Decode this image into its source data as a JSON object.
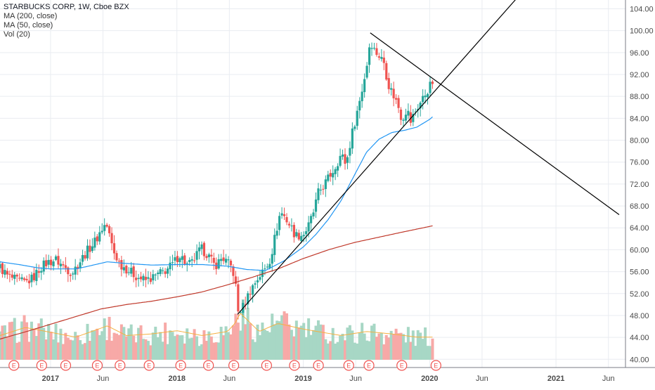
{
  "legend": {
    "title": "STARBUCKS CORP, 1W, Cboe BZX",
    "ma200": "MA (200, close)",
    "ma50": "MA (50, close)",
    "vol": "Vol (20)"
  },
  "colors": {
    "up": "#26a69a",
    "down": "#ef5350",
    "vol_up": "#a7d7c5",
    "vol_down": "#f7a9a7",
    "ma200": "#c0392b",
    "ma50": "#2196f3",
    "vol_ma": "#f5b041",
    "trendline": "#000000",
    "grid": "#e9ecf1",
    "axis_text": "#4a4a4a"
  },
  "chart_data": {
    "type": "candlestick",
    "y_ticks": [
      "40.00",
      "44.00",
      "48.00",
      "52.00",
      "56.00",
      "60.00",
      "64.00",
      "68.00",
      "72.00",
      "76.00",
      "80.00",
      "84.00",
      "88.00",
      "92.00",
      "96.00",
      "100.00",
      "104.00"
    ],
    "y_tick_values": [
      40,
      44,
      48,
      52,
      56,
      60,
      64,
      68,
      72,
      76,
      80,
      84,
      88,
      92,
      96,
      100,
      104
    ],
    "ylim": [
      38.5,
      105.6
    ],
    "x_ticks": [
      {
        "label": "2017",
        "t": 2017.0
      },
      {
        "label": "Jun",
        "t": 2017.415
      },
      {
        "label": "2018",
        "t": 2018.0
      },
      {
        "label": "Jun",
        "t": 2018.415
      },
      {
        "label": "2019",
        "t": 2019.0
      },
      {
        "label": "Jun",
        "t": 2019.415
      },
      {
        "label": "2020",
        "t": 2020.0
      },
      {
        "label": "Jun",
        "t": 2020.415
      },
      {
        "label": "2021",
        "t": 2021.0
      },
      {
        "label": "Jun",
        "t": 2021.415
      }
    ],
    "price_anchors": [
      [
        2016.6,
        56.8
      ],
      [
        2016.66,
        55.2
      ],
      [
        2016.73,
        54.4
      ],
      [
        2016.8,
        54.0
      ],
      [
        2016.86,
        54.8
      ],
      [
        2016.92,
        56.8
      ],
      [
        2016.97,
        57.6
      ],
      [
        2017.04,
        58.2
      ],
      [
        2017.1,
        57.0
      ],
      [
        2017.17,
        55.8
      ],
      [
        2017.23,
        57.8
      ],
      [
        2017.29,
        59.8
      ],
      [
        2017.36,
        61.8
      ],
      [
        2017.4,
        63.6
      ],
      [
        2017.44,
        64.8
      ],
      [
        2017.5,
        59.6
      ],
      [
        2017.55,
        57.4
      ],
      [
        2017.62,
        56.2
      ],
      [
        2017.69,
        55.0
      ],
      [
        2017.75,
        54.4
      ],
      [
        2017.8,
        54.8
      ],
      [
        2017.86,
        55.6
      ],
      [
        2017.92,
        56.4
      ],
      [
        2017.97,
        57.4
      ],
      [
        2018.02,
        59.2
      ],
      [
        2018.08,
        57.2
      ],
      [
        2018.12,
        57.6
      ],
      [
        2018.19,
        60.2
      ],
      [
        2018.24,
        59.2
      ],
      [
        2018.3,
        57.0
      ],
      [
        2018.36,
        58.6
      ],
      [
        2018.4,
        57.6
      ],
      [
        2018.44,
        56.6
      ],
      [
        2018.47,
        52.6
      ],
      [
        2018.48,
        48.6
      ],
      [
        2018.52,
        49.4
      ],
      [
        2018.58,
        52.6
      ],
      [
        2018.64,
        54.8
      ],
      [
        2018.7,
        56.6
      ],
      [
        2018.74,
        58.4
      ],
      [
        2018.78,
        62.8
      ],
      [
        2018.82,
        67.0
      ],
      [
        2018.86,
        65.8
      ],
      [
        2018.9,
        64.2
      ],
      [
        2018.94,
        62.6
      ],
      [
        2019.0,
        62.8
      ],
      [
        2019.04,
        64.2
      ],
      [
        2019.08,
        66.8
      ],
      [
        2019.12,
        70.4
      ],
      [
        2019.18,
        72.4
      ],
      [
        2019.24,
        74.6
      ],
      [
        2019.3,
        77.4
      ],
      [
        2019.34,
        75.6
      ],
      [
        2019.38,
        80.6
      ],
      [
        2019.42,
        84.6
      ],
      [
        2019.46,
        88.6
      ],
      [
        2019.5,
        93.2
      ],
      [
        2019.53,
        98.4
      ],
      [
        2019.56,
        96.6
      ],
      [
        2019.6,
        95.4
      ],
      [
        2019.64,
        94.2
      ],
      [
        2019.67,
        90.4
      ],
      [
        2019.71,
        88.4
      ],
      [
        2019.75,
        86.4
      ],
      [
        2019.78,
        83.8
      ],
      [
        2019.82,
        85.8
      ],
      [
        2019.85,
        83.4
      ],
      [
        2019.88,
        85.0
      ],
      [
        2019.92,
        86.6
      ],
      [
        2019.96,
        88.2
      ],
      [
        2020.0,
        89.8
      ],
      [
        2020.03,
        90.8
      ]
    ],
    "ma50_anchors": [
      [
        2016.6,
        57.8
      ],
      [
        2016.75,
        57.3
      ],
      [
        2016.9,
        56.7
      ],
      [
        2017.0,
        56.5
      ],
      [
        2017.2,
        56.5
      ],
      [
        2017.3,
        57.0
      ],
      [
        2017.45,
        57.8
      ],
      [
        2017.6,
        57.5
      ],
      [
        2017.8,
        57.2
      ],
      [
        2018.0,
        57.3
      ],
      [
        2018.2,
        57.3
      ],
      [
        2018.4,
        57.0
      ],
      [
        2018.55,
        56.4
      ],
      [
        2018.7,
        56.2
      ],
      [
        2018.85,
        58.0
      ],
      [
        2019.0,
        60.5
      ],
      [
        2019.1,
        62.8
      ],
      [
        2019.2,
        65.6
      ],
      [
        2019.3,
        69.0
      ],
      [
        2019.4,
        73.4
      ],
      [
        2019.5,
        77.8
      ],
      [
        2019.6,
        80.2
      ],
      [
        2019.7,
        81.4
      ],
      [
        2019.8,
        81.8
      ],
      [
        2019.9,
        82.4
      ],
      [
        2020.0,
        83.8
      ],
      [
        2020.03,
        84.4
      ]
    ],
    "ma200_anchors": [
      [
        2016.6,
        43.7
      ],
      [
        2016.8,
        45.0
      ],
      [
        2017.0,
        46.4
      ],
      [
        2017.2,
        47.8
      ],
      [
        2017.4,
        49.2
      ],
      [
        2017.6,
        50.0
      ],
      [
        2017.8,
        50.6
      ],
      [
        2018.0,
        51.4
      ],
      [
        2018.2,
        52.3
      ],
      [
        2018.4,
        53.6
      ],
      [
        2018.6,
        55.0
      ],
      [
        2018.8,
        56.5
      ],
      [
        2019.0,
        58.4
      ],
      [
        2019.2,
        60.0
      ],
      [
        2019.4,
        61.3
      ],
      [
        2019.6,
        62.3
      ],
      [
        2019.8,
        63.3
      ],
      [
        2020.03,
        64.4
      ]
    ],
    "volume_rel_anchors": [
      [
        2016.6,
        0.3
      ],
      [
        2016.8,
        0.4
      ],
      [
        2017.0,
        0.34
      ],
      [
        2017.2,
        0.28
      ],
      [
        2017.45,
        0.42
      ],
      [
        2017.6,
        0.3
      ],
      [
        2017.8,
        0.32
      ],
      [
        2018.0,
        0.36
      ],
      [
        2018.2,
        0.3
      ],
      [
        2018.4,
        0.35
      ],
      [
        2018.46,
        0.45
      ],
      [
        2018.5,
        0.58
      ],
      [
        2018.65,
        0.35
      ],
      [
        2018.8,
        0.45
      ],
      [
        2019.0,
        0.38
      ],
      [
        2019.3,
        0.3
      ],
      [
        2019.5,
        0.35
      ],
      [
        2019.7,
        0.32
      ],
      [
        2019.9,
        0.28
      ],
      [
        2020.03,
        0.28
      ]
    ],
    "trendlines": [
      {
        "from": [
          2018.48,
          48.2
        ],
        "to": [
          2020.75,
          107.5
        ]
      },
      {
        "from": [
          2019.53,
          99.6
        ],
        "to": [
          2021.5,
          66.4
        ]
      }
    ],
    "earnings_markers": {
      "label": "E",
      "t": [
        2016.71,
        2016.93,
        2017.12,
        2017.37,
        2017.55,
        2017.78,
        2018.03,
        2018.25,
        2018.45,
        2018.71,
        2018.93,
        2019.12,
        2019.36,
        2019.52,
        2019.78,
        2020.05
      ]
    }
  }
}
